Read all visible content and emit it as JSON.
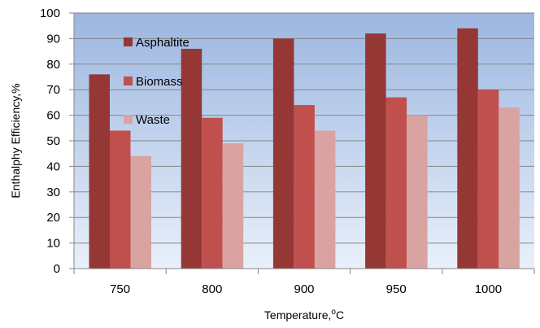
{
  "chart_data": {
    "type": "bar",
    "categories": [
      "750",
      "800",
      "900",
      "950",
      "1000"
    ],
    "series": [
      {
        "name": "Asphaltite",
        "values": [
          76,
          86,
          90,
          92,
          94
        ],
        "color": "#953735"
      },
      {
        "name": "Biomass",
        "values": [
          54,
          59,
          64,
          67,
          70
        ],
        "color": "#c0504d"
      },
      {
        "name": "Waste",
        "values": [
          44,
          49,
          54,
          60,
          63
        ],
        "color": "#d9a3a2"
      }
    ],
    "title": "",
    "xlabel": "Temperature,",
    "xlabel_superscript": "o",
    "xlabel_unit": "C",
    "ylabel": "Enthalphy Efficiency,%",
    "ylim": [
      0,
      100
    ],
    "yticks": [
      0,
      10,
      20,
      30,
      40,
      50,
      60,
      70,
      80,
      90,
      100
    ],
    "grid": true,
    "legend_position": "top-left (inside plot)",
    "plot_background": "gradient light blue",
    "colors": {
      "gridline": "#868686",
      "plot_top": "#9cb6e0",
      "plot_bottom": "#e9f0fa"
    }
  }
}
